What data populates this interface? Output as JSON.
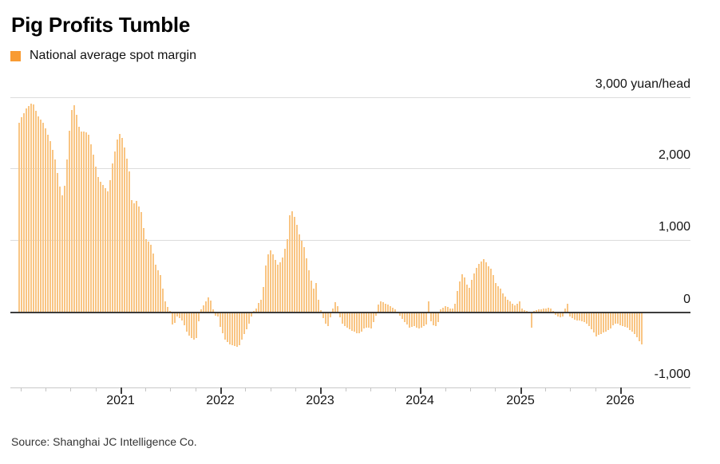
{
  "title": "Pig Profits Tumble",
  "legend": {
    "label": "National average spot margin",
    "color": "#f89b33"
  },
  "source": "Source: Shanghai JC Intelligence Co.",
  "colors": {
    "bar": "#f9c583",
    "legend_swatch": "#f89b33",
    "zero_line": "#2d2d2d",
    "gridline": "#dcdcdc"
  },
  "chart_data": {
    "type": "bar",
    "title": "Pig Profits Tumble",
    "series_name": "National average spot margin",
    "unit": "yuan/head",
    "grid": "horizontal",
    "legend_position": "top-left",
    "ylim": [
      -1000,
      3000
    ],
    "y_ticks": [
      3000,
      2000,
      1000,
      0,
      -1000
    ],
    "y_tick_labels": [
      "3,000 yuan/head",
      "2,000",
      "1,000",
      "0",
      "-1,000"
    ],
    "x_ticks": [
      2021,
      2022,
      2023,
      2024,
      2025,
      2026
    ],
    "x_tick_labels": [
      "2021",
      "2022",
      "2023",
      "2024",
      "2025",
      "2026"
    ],
    "x_range_years": [
      2019.97,
      2026.25
    ],
    "x_minor_tick_interval_years": 0.25,
    "sampling": "approx. weekly spot margin, digitized from bar envelope",
    "values": [
      2630,
      2700,
      2760,
      2830,
      2860,
      2890,
      2880,
      2790,
      2710,
      2670,
      2630,
      2550,
      2460,
      2370,
      2250,
      2120,
      1930,
      1740,
      1620,
      1750,
      2120,
      2520,
      2800,
      2870,
      2740,
      2570,
      2500,
      2510,
      2490,
      2460,
      2330,
      2180,
      2020,
      1880,
      1810,
      1770,
      1720,
      1680,
      1830,
      2060,
      2230,
      2390,
      2470,
      2420,
      2290,
      2130,
      1950,
      1560,
      1510,
      1540,
      1470,
      1390,
      1170,
      1020,
      980,
      940,
      820,
      660,
      590,
      520,
      330,
      160,
      80,
      20,
      -170,
      -140,
      -60,
      -80,
      -110,
      -180,
      -260,
      -320,
      -350,
      -380,
      -350,
      -120,
      40,
      100,
      160,
      210,
      170,
      40,
      -40,
      -60,
      -200,
      -290,
      -370,
      -410,
      -440,
      -450,
      -460,
      -470,
      -450,
      -370,
      -300,
      -230,
      -150,
      -50,
      20,
      50,
      130,
      180,
      350,
      650,
      810,
      860,
      810,
      730,
      660,
      690,
      760,
      880,
      1010,
      1350,
      1400,
      1330,
      1210,
      1080,
      990,
      900,
      750,
      580,
      440,
      330,
      410,
      180,
      30,
      -80,
      -160,
      -190,
      -70,
      50,
      140,
      90,
      -70,
      -150,
      -190,
      -210,
      -230,
      -250,
      -270,
      -290,
      -285,
      -260,
      -225,
      -205,
      -210,
      -225,
      -130,
      -40,
      110,
      150,
      140,
      125,
      105,
      90,
      70,
      40,
      -10,
      -40,
      -90,
      -130,
      -165,
      -205,
      -195,
      -190,
      -205,
      -220,
      -210,
      -190,
      -170,
      150,
      -120,
      -180,
      -190,
      -130,
      40,
      70,
      90,
      80,
      60,
      50,
      120,
      300,
      430,
      530,
      490,
      390,
      340,
      450,
      540,
      620,
      670,
      710,
      740,
      690,
      640,
      610,
      520,
      410,
      360,
      330,
      270,
      220,
      180,
      150,
      120,
      100,
      120,
      150,
      60,
      30,
      20,
      10,
      -210,
      20,
      30,
      40,
      45,
      50,
      55,
      65,
      55,
      25,
      -35,
      -55,
      -65,
      -55,
      60,
      120,
      -60,
      -80,
      -95,
      -105,
      -115,
      -125,
      -135,
      -150,
      -190,
      -230,
      -280,
      -330,
      -310,
      -295,
      -275,
      -260,
      -240,
      -225,
      -175,
      -150,
      -160,
      -180,
      -190,
      -200,
      -215,
      -240,
      -265,
      -300,
      -340,
      -395,
      -440
    ]
  }
}
